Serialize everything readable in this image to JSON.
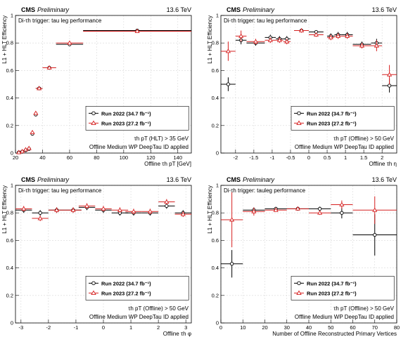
{
  "chart_data": [
    {
      "type": "scatter",
      "title_cms": "CMS",
      "title_prelim": "Preliminary",
      "energy": "13.6 TeV",
      "annotation": "Di-τh trigger: tau leg performance",
      "xlabel": "Offline τh pT [GeV]",
      "ylabel": "L1 + HLT Efficiency",
      "xlim": [
        20,
        150
      ],
      "ylim": [
        0,
        1.0
      ],
      "xticks": [
        20,
        40,
        60,
        80,
        100,
        120,
        140
      ],
      "yticks": [
        0,
        0.2,
        0.4,
        0.6,
        0.8,
        1
      ],
      "legend_position": "center-right",
      "cut_text": "τh pT (HLT) > 35 GeV",
      "wp_text": "Offline Medium WP DeepTau ID applied",
      "series": [
        {
          "name": "Run 2022 (34.7 fb⁻¹)",
          "color": "#000000",
          "marker": "circle",
          "x": [
            22.5,
            25,
            27.5,
            30,
            32.5,
            35,
            37.5,
            45,
            60,
            110
          ],
          "xerr": [
            1.25,
            1.25,
            1.25,
            1.25,
            1.25,
            1.25,
            2.5,
            5,
            10,
            40
          ],
          "y": [
            0.005,
            0.01,
            0.02,
            0.03,
            0.14,
            0.28,
            0.47,
            0.62,
            0.79,
            0.89
          ]
        },
        {
          "name": "Run 2023 (27.2 fb⁻¹)",
          "color": "#d62020",
          "marker": "triangle",
          "x": [
            22.5,
            25,
            27.5,
            30,
            32.5,
            35,
            37.5,
            45,
            60,
            110
          ],
          "xerr": [
            1.25,
            1.25,
            1.25,
            1.25,
            1.25,
            1.25,
            2.5,
            5,
            10,
            40
          ],
          "y": [
            0.005,
            0.012,
            0.025,
            0.035,
            0.15,
            0.29,
            0.47,
            0.62,
            0.8,
            0.885
          ]
        }
      ]
    },
    {
      "type": "scatter",
      "title_cms": "CMS",
      "title_prelim": "Preliminary",
      "energy": "13.6 TeV",
      "annotation": "Di-τh trigger: tau leg performance",
      "xlabel": "Offline τh η",
      "ylabel": "L1 + HLT Efficiency",
      "xlim": [
        -2.4,
        2.4
      ],
      "ylim": [
        0,
        1.0
      ],
      "xticks": [
        -2,
        -1.5,
        -1,
        -0.5,
        0,
        0.5,
        1,
        1.5,
        2
      ],
      "yticks": [
        0,
        0.2,
        0.4,
        0.6,
        0.8,
        1
      ],
      "legend_position": "center-right",
      "cut_text": "τh pT (Offline) > 50 GeV",
      "wp_text": "Offline Medium WP DeepTau ID applied",
      "series": [
        {
          "name": "Run 2022 (34.7 fb⁻¹)",
          "color": "#000000",
          "marker": "circle",
          "x": [
            -2.2,
            -1.85,
            -1.45,
            -1.05,
            -0.8,
            -0.6,
            -0.2,
            0.2,
            0.6,
            0.8,
            1.05,
            1.45,
            1.85,
            2.2
          ],
          "xerr": [
            0.2,
            0.15,
            0.25,
            0.15,
            0.1,
            0.1,
            0.2,
            0.2,
            0.1,
            0.1,
            0.15,
            0.25,
            0.15,
            0.2
          ],
          "yerr": [
            0.05,
            0.03,
            0.02,
            0.02,
            0.02,
            0.02,
            0.01,
            0.01,
            0.02,
            0.02,
            0.02,
            0.02,
            0.03,
            0.05
          ],
          "y": [
            0.5,
            0.82,
            0.8,
            0.84,
            0.83,
            0.83,
            0.89,
            0.88,
            0.85,
            0.86,
            0.86,
            0.79,
            0.8,
            0.49
          ]
        },
        {
          "name": "Run 2023 (27.2 fb⁻¹)",
          "color": "#d62020",
          "marker": "triangle",
          "x": [
            -2.2,
            -1.85,
            -1.45,
            -1.05,
            -0.8,
            -0.6,
            -0.2,
            0.2,
            0.6,
            0.8,
            1.05,
            1.45,
            1.85,
            2.2
          ],
          "xerr": [
            0.2,
            0.15,
            0.25,
            0.15,
            0.1,
            0.1,
            0.2,
            0.2,
            0.1,
            0.1,
            0.15,
            0.25,
            0.15,
            0.2
          ],
          "yerr": [
            0.07,
            0.04,
            0.02,
            0.02,
            0.02,
            0.02,
            0.015,
            0.015,
            0.02,
            0.02,
            0.02,
            0.02,
            0.04,
            0.07
          ],
          "y": [
            0.74,
            0.85,
            0.81,
            0.82,
            0.82,
            0.81,
            0.89,
            0.86,
            0.84,
            0.85,
            0.85,
            0.78,
            0.78,
            0.57
          ]
        }
      ]
    },
    {
      "type": "scatter",
      "title_cms": "CMS",
      "title_prelim": "Preliminary",
      "energy": "13.6 TeV",
      "annotation": "Di-τh trigger: tau leg performance",
      "xlabel": "Offline τh φ",
      "ylabel": "L1 + HLT Efficiency",
      "xlim": [
        -3.2,
        3.2
      ],
      "ylim": [
        0,
        1.0
      ],
      "xticks": [
        -3,
        -2,
        -1,
        0,
        1,
        2,
        3
      ],
      "yticks": [
        0,
        0.2,
        0.4,
        0.6,
        0.8,
        1
      ],
      "legend_position": "center-right",
      "cut_text": "τh pT (Offline) > 50 GeV",
      "wp_text": "Offline Medium WP DeepTau ID applied",
      "series": [
        {
          "name": "Run 2022 (34.7 fb⁻¹)",
          "color": "#000000",
          "marker": "circle",
          "x": [
            -2.9,
            -2.3,
            -1.7,
            -1.1,
            -0.6,
            0,
            0.6,
            1.1,
            1.7,
            2.3,
            2.9
          ],
          "xerr": [
            0.3,
            0.3,
            0.3,
            0.3,
            0.3,
            0.3,
            0.3,
            0.3,
            0.3,
            0.3,
            0.3
          ],
          "yerr": [
            0.02,
            0.02,
            0.02,
            0.02,
            0.02,
            0.02,
            0.02,
            0.02,
            0.02,
            0.02,
            0.02
          ],
          "y": [
            0.82,
            0.8,
            0.82,
            0.82,
            0.84,
            0.82,
            0.8,
            0.8,
            0.8,
            0.85,
            0.8
          ]
        },
        {
          "name": "Run 2023 (27.2 fb⁻¹)",
          "color": "#d62020",
          "marker": "triangle",
          "x": [
            -2.9,
            -2.3,
            -1.7,
            -1.1,
            -0.6,
            0,
            0.6,
            1.1,
            1.7,
            2.3,
            2.9
          ],
          "xerr": [
            0.3,
            0.3,
            0.3,
            0.3,
            0.3,
            0.3,
            0.3,
            0.3,
            0.3,
            0.3,
            0.3
          ],
          "yerr": [
            0.02,
            0.02,
            0.02,
            0.02,
            0.02,
            0.02,
            0.02,
            0.02,
            0.02,
            0.02,
            0.02
          ],
          "y": [
            0.83,
            0.76,
            0.82,
            0.82,
            0.85,
            0.83,
            0.82,
            0.81,
            0.81,
            0.88,
            0.79
          ]
        }
      ]
    },
    {
      "type": "scatter",
      "title_cms": "CMS",
      "title_prelim": "Preliminary",
      "energy": "13.6 TeV",
      "annotation": "Di-τh trigger: tauleg performance",
      "xlabel": "Number of Offline Reconstructed Primary Vertices",
      "ylabel": "L1 + HLT Efficiency",
      "xlim": [
        0,
        80
      ],
      "ylim": [
        0,
        1.0
      ],
      "xticks": [
        0,
        10,
        20,
        30,
        40,
        50,
        60,
        70,
        80
      ],
      "yticks": [
        0,
        0.2,
        0.4,
        0.6,
        0.8,
        1
      ],
      "legend_position": "center-right",
      "cut_text": "τh pT (Offline) > 50 GeV",
      "wp_text": "Offline Medium WP DeepTau ID applied",
      "series": [
        {
          "name": "Run 2022 (34.7 fb⁻¹)",
          "color": "#000000",
          "marker": "circle",
          "x": [
            5,
            15,
            25,
            35,
            45,
            55,
            70
          ],
          "xerr": [
            5,
            5,
            5,
            5,
            5,
            5,
            10
          ],
          "yerr": [
            0.1,
            0.02,
            0.01,
            0.01,
            0.015,
            0.04,
            0.15
          ],
          "y": [
            0.43,
            0.82,
            0.83,
            0.83,
            0.83,
            0.8,
            0.64
          ]
        },
        {
          "name": "Run 2023 (27.2 fb⁻¹)",
          "color": "#d62020",
          "marker": "triangle",
          "x": [
            5,
            15,
            25,
            35,
            45,
            55,
            70
          ],
          "xerr": [
            5,
            5,
            5,
            5,
            5,
            5,
            10
          ],
          "yerr": [
            0.2,
            0.03,
            0.01,
            0.01,
            0.015,
            0.03,
            0.1
          ],
          "y": [
            0.75,
            0.81,
            0.82,
            0.83,
            0.8,
            0.86,
            0.82
          ]
        }
      ]
    }
  ]
}
